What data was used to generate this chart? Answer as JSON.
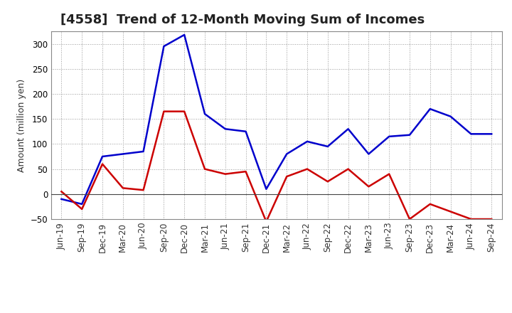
{
  "title": "[4558]  Trend of 12-Month Moving Sum of Incomes",
  "ylabel": "Amount (million yen)",
  "xlabels": [
    "Jun-19",
    "Sep-19",
    "Dec-19",
    "Mar-20",
    "Jun-20",
    "Sep-20",
    "Dec-20",
    "Mar-21",
    "Jun-21",
    "Sep-21",
    "Dec-21",
    "Mar-22",
    "Jun-22",
    "Sep-22",
    "Dec-22",
    "Mar-23",
    "Jun-23",
    "Sep-23",
    "Dec-23",
    "Mar-24",
    "Jun-24",
    "Sep-24"
  ],
  "ordinary_income": [
    -10,
    -20,
    75,
    80,
    85,
    295,
    318,
    160,
    130,
    125,
    10,
    80,
    105,
    95,
    130,
    80,
    115,
    118,
    170,
    155,
    120,
    120
  ],
  "net_income": [
    5,
    -30,
    60,
    12,
    8,
    165,
    165,
    50,
    40,
    45,
    -55,
    35,
    50,
    25,
    50,
    15,
    40,
    -50,
    -20,
    -35,
    -50,
    -50
  ],
  "ylim": [
    -50,
    325
  ],
  "yticks": [
    -50,
    0,
    50,
    100,
    150,
    200,
    250,
    300
  ],
  "ordinary_color": "#0000CC",
  "net_color": "#CC0000",
  "background_color": "#FFFFFF",
  "grid_color": "#999999",
  "title_fontsize": 13,
  "axis_fontsize": 9,
  "tick_fontsize": 8.5
}
